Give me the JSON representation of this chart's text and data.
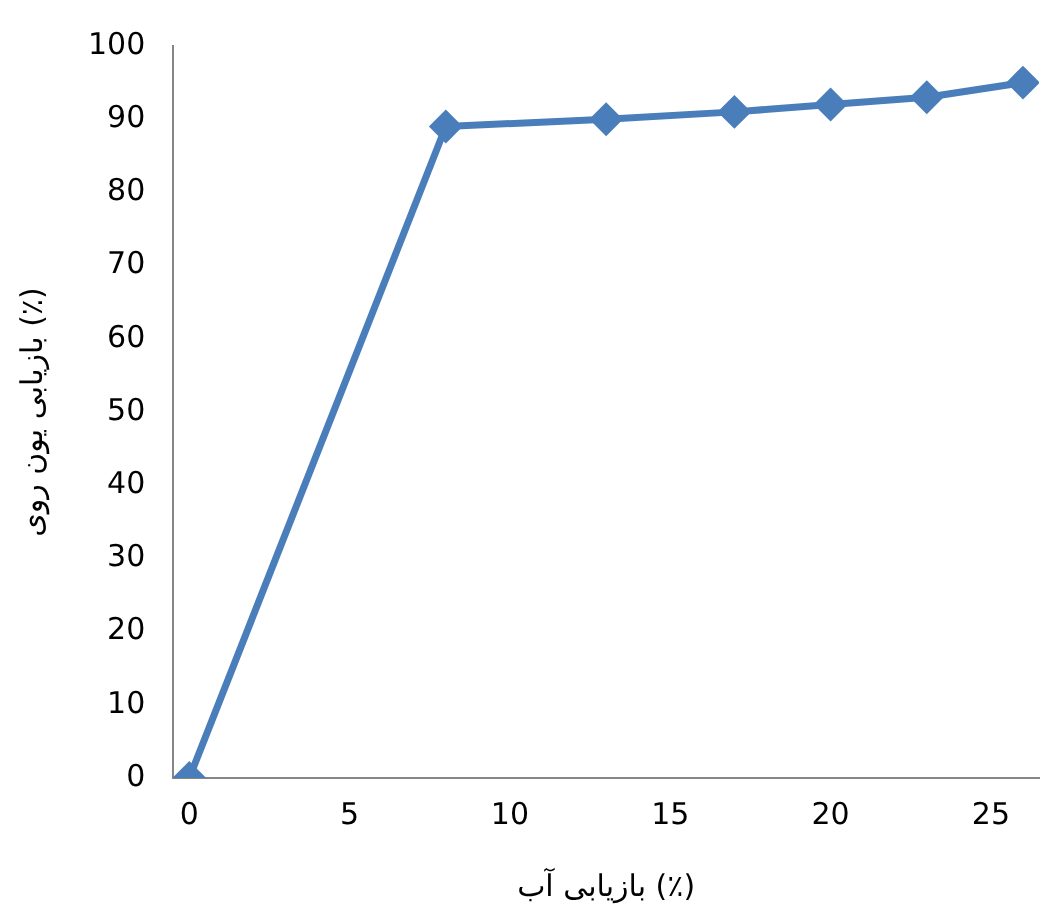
{
  "chart_data": {
    "type": "line",
    "xlabel": "بازیابی آب (٪)",
    "ylabel": "بازیابی یون روی (٪)",
    "x": [
      0,
      8,
      13,
      17,
      20,
      23,
      26
    ],
    "series": [
      {
        "color": "#4a7ebb",
        "values": [
          0,
          89,
          90,
          91,
          92,
          93,
          95
        ]
      }
    ],
    "xlim": [
      -0.5,
      26.5
    ],
    "xticks": [
      0,
      5,
      10,
      15,
      20,
      25
    ],
    "ylim": [
      0,
      100
    ],
    "yticks": [
      0,
      10,
      20,
      30,
      40,
      50,
      60,
      70,
      80,
      90,
      100
    ],
    "grid": false,
    "legend": false,
    "marker": "diamond",
    "line_style": "solid"
  }
}
